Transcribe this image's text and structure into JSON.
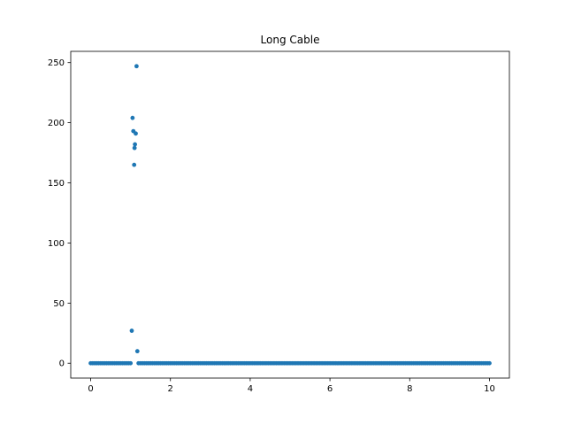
{
  "chart_data": {
    "type": "scatter",
    "title": "Long Cable",
    "xlabel": "",
    "ylabel": "",
    "xlim": [
      -0.5,
      10.5
    ],
    "ylim": [
      -12.35,
      259.35
    ],
    "xticks": [
      0,
      2,
      4,
      6,
      8,
      10
    ],
    "xtick_labels": [
      "0",
      "2",
      "4",
      "6",
      "8",
      "10"
    ],
    "yticks": [
      0,
      50,
      100,
      150,
      200,
      250
    ],
    "ytick_labels": [
      "0",
      "50",
      "100",
      "150",
      "200",
      "250"
    ],
    "grid": false,
    "legend": "none",
    "marker_color": "#1f77b4",
    "baseline": {
      "x_start": 0,
      "x_end": 10,
      "step": 0.05,
      "y": 0
    },
    "baseline_gap": [
      1.0,
      1.2
    ],
    "points": [
      {
        "x": 1.03,
        "y": 27
      },
      {
        "x": 1.05,
        "y": 204
      },
      {
        "x": 1.07,
        "y": 193
      },
      {
        "x": 1.09,
        "y": 165
      },
      {
        "x": 1.1,
        "y": 179
      },
      {
        "x": 1.11,
        "y": 182
      },
      {
        "x": 1.13,
        "y": 191
      },
      {
        "x": 1.15,
        "y": 247
      },
      {
        "x": 1.17,
        "y": 10
      }
    ]
  }
}
